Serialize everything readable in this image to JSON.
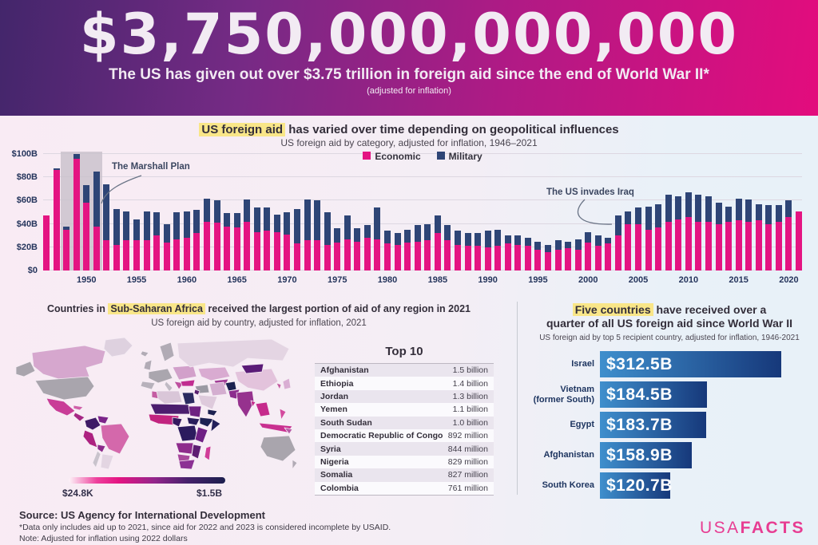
{
  "header": {
    "amount": "$3,750,000,000,000",
    "subtitle": "The US has given out over $3.75 trillion in foreign aid since the end of World War II*",
    "note": "(adjusted for inflation)"
  },
  "colors": {
    "economic": "#e41482",
    "military": "#2e4576",
    "highlight_yellow": "#f9e688",
    "top5_bar_start": "#3f8fcd",
    "top5_bar_end": "#16387a",
    "map_scale_start": "#fdf4f9",
    "map_scale_mid": "#e41482",
    "map_scale_end": "#1c1f4e",
    "logo_pink": "#e73d92"
  },
  "timeseries": {
    "title_highlight": "US foreign aid",
    "title_rest": " has varied over time depending on geopolitical influences",
    "subtitle": "US foreign aid by category, adjusted for inflation, 1946–2021"
  },
  "map_section": {
    "title_pre": "Countries in ",
    "title_highlight": "Sub-Saharan Africa",
    "title_post": " received the largest portion of aid of any region in 2021",
    "subtitle": "US foreign aid by country, adjusted for inflation, 2021",
    "scale_min": "$24.8K",
    "scale_max": "$1.5B",
    "table_title": "Top 10",
    "table_rows": [
      {
        "country": "Afghanistan",
        "amount": "1.5 billion"
      },
      {
        "country": "Ethiopia",
        "amount": "1.4 billion"
      },
      {
        "country": "Jordan",
        "amount": "1.3 billion"
      },
      {
        "country": "Yemen",
        "amount": "1.1 billion"
      },
      {
        "country": "South Sudan",
        "amount": "1.0 billion"
      },
      {
        "country": "Democratic Republic of Congo",
        "amount": "892 million"
      },
      {
        "country": "Syria",
        "amount": "844 million"
      },
      {
        "country": "Nigeria",
        "amount": "829 million"
      },
      {
        "country": "Somalia",
        "amount": "827 million"
      },
      {
        "country": "Colombia",
        "amount": "761 million"
      }
    ]
  },
  "top5_section": {
    "title_highlight": "Five countries",
    "title_rest": " have received over a",
    "title_line2": "quarter of all US foreign aid since World War II",
    "subtitle": "US foreign aid by top 5 recipient country, adjusted for inflation, 1946-2021",
    "display_labels": [
      {
        "lines": [
          "Israel"
        ]
      },
      {
        "lines": [
          "Vietnam",
          "(former South)"
        ]
      },
      {
        "lines": [
          "Egypt"
        ]
      },
      {
        "lines": [
          "Afghanistan"
        ]
      },
      {
        "lines": [
          "South Korea"
        ]
      }
    ]
  },
  "footer": {
    "source": "Source: US Agency for International Development",
    "note1": "*Data only includes aid up to 2021, since aid for 2022 and 2023 is considered incomplete by USAID.",
    "note2": "Note: Adjusted for inflation using 2022 dollars",
    "logo": {
      "part1": "USA",
      "part2": "FACTS"
    }
  },
  "chart_data": [
    {
      "type": "bar",
      "stacked": true,
      "title": "US foreign aid has varied over time depending on geopolitical influences",
      "subtitle": "US foreign aid by category, adjusted for inflation, 1946–2021",
      "unit": "billions of US dollars",
      "legend_position": "top-center",
      "ylim": [
        0,
        100
      ],
      "y_ticks": [
        "$0",
        "$20B",
        "$40B",
        "$60B",
        "$80B",
        "$100B"
      ],
      "y_tick_values": [
        0,
        20,
        40,
        60,
        80,
        100
      ],
      "x_ticks": [
        1950,
        1955,
        1960,
        1965,
        1970,
        1975,
        1980,
        1985,
        1990,
        1995,
        2000,
        2005,
        2010,
        2015,
        2020
      ],
      "x": [
        1946,
        1947,
        1948,
        1949,
        1950,
        1951,
        1952,
        1953,
        1954,
        1955,
        1956,
        1957,
        1958,
        1959,
        1960,
        1961,
        1962,
        1963,
        1964,
        1965,
        1966,
        1967,
        1968,
        1969,
        1970,
        1971,
        1972,
        1973,
        1974,
        1975,
        1976,
        1977,
        1978,
        1979,
        1980,
        1981,
        1982,
        1983,
        1984,
        1985,
        1986,
        1987,
        1988,
        1989,
        1990,
        1991,
        1992,
        1993,
        1994,
        1995,
        1996,
        1997,
        1998,
        1999,
        2000,
        2001,
        2002,
        2003,
        2004,
        2005,
        2006,
        2007,
        2008,
        2009,
        2010,
        2011,
        2012,
        2013,
        2014,
        2015,
        2016,
        2017,
        2018,
        2019,
        2020,
        2021
      ],
      "series": [
        {
          "name": "Economic",
          "color": "#e41482",
          "values": [
            47,
            86,
            35,
            96,
            58,
            38,
            26,
            22,
            26,
            26,
            26,
            30,
            24,
            27,
            28,
            32,
            42,
            41,
            38,
            37,
            42,
            33,
            34,
            33,
            31,
            23,
            26,
            26,
            22,
            24,
            27,
            25,
            28,
            27,
            23,
            22,
            24,
            25,
            26,
            32,
            26,
            22,
            21,
            21,
            20,
            21,
            23,
            22,
            21,
            18,
            16,
            18,
            19,
            18,
            24,
            21,
            23,
            30,
            40,
            40,
            35,
            37,
            42,
            44,
            46,
            42,
            42,
            40,
            42,
            43,
            42,
            43,
            40,
            42,
            46,
            51
          ]
        },
        {
          "name": "Military",
          "color": "#2e4576",
          "values": [
            0,
            2,
            3,
            4,
            15,
            47,
            48,
            31,
            25,
            18,
            25,
            20,
            16,
            23,
            23,
            20,
            20,
            19,
            11,
            12,
            19,
            21,
            20,
            15,
            19,
            30,
            35,
            34,
            28,
            12,
            20,
            11,
            11,
            27,
            11,
            10,
            11,
            14,
            14,
            15,
            13,
            12,
            11,
            11,
            14,
            14,
            7,
            8,
            7,
            7,
            6,
            8,
            6,
            9,
            9,
            9,
            5,
            17,
            11,
            14,
            20,
            20,
            23,
            20,
            21,
            23,
            22,
            18,
            13,
            19,
            19,
            14,
            16,
            14,
            14,
            0
          ]
        }
      ],
      "annotations": [
        {
          "text": "The Marshall Plan",
          "x_range": [
            1948,
            1951
          ]
        },
        {
          "text": "The US invades Iraq",
          "x": 2003
        }
      ]
    },
    {
      "type": "heatmap",
      "subtype": "world-choropleth",
      "title": "Countries in Sub-Saharan Africa received the largest portion of aid of any region in 2021",
      "subtitle": "US foreign aid by country, adjusted for inflation, 2021",
      "scale": {
        "min_label": "$24.8K",
        "max_label": "$1.5B"
      },
      "top10_categories": [
        "Afghanistan",
        "Ethiopia",
        "Jordan",
        "Yemen",
        "South Sudan",
        "Democratic Republic of Congo",
        "Syria",
        "Nigeria",
        "Somalia",
        "Colombia"
      ],
      "top10_value_labels": [
        "1.5 billion",
        "1.4 billion",
        "1.3 billion",
        "1.1 billion",
        "1.0 billion",
        "892 million",
        "844 million",
        "829 million",
        "827 million",
        "761 million"
      ]
    },
    {
      "type": "bar",
      "orientation": "horizontal",
      "title": "Five countries have received over a quarter of all US foreign aid since World War II",
      "subtitle": "US foreign aid by top 5 recipient country, adjusted for inflation, 1946-2021",
      "categories": [
        "Israel",
        "Vietnam (former South)",
        "Egypt",
        "Afghanistan",
        "South Korea"
      ],
      "values": [
        312.5,
        184.5,
        183.7,
        158.9,
        120.7
      ],
      "value_labels": [
        "$312.5B",
        "$184.5B",
        "$183.7B",
        "$158.9B",
        "$120.7B"
      ],
      "xlim": [
        0,
        320
      ]
    }
  ]
}
